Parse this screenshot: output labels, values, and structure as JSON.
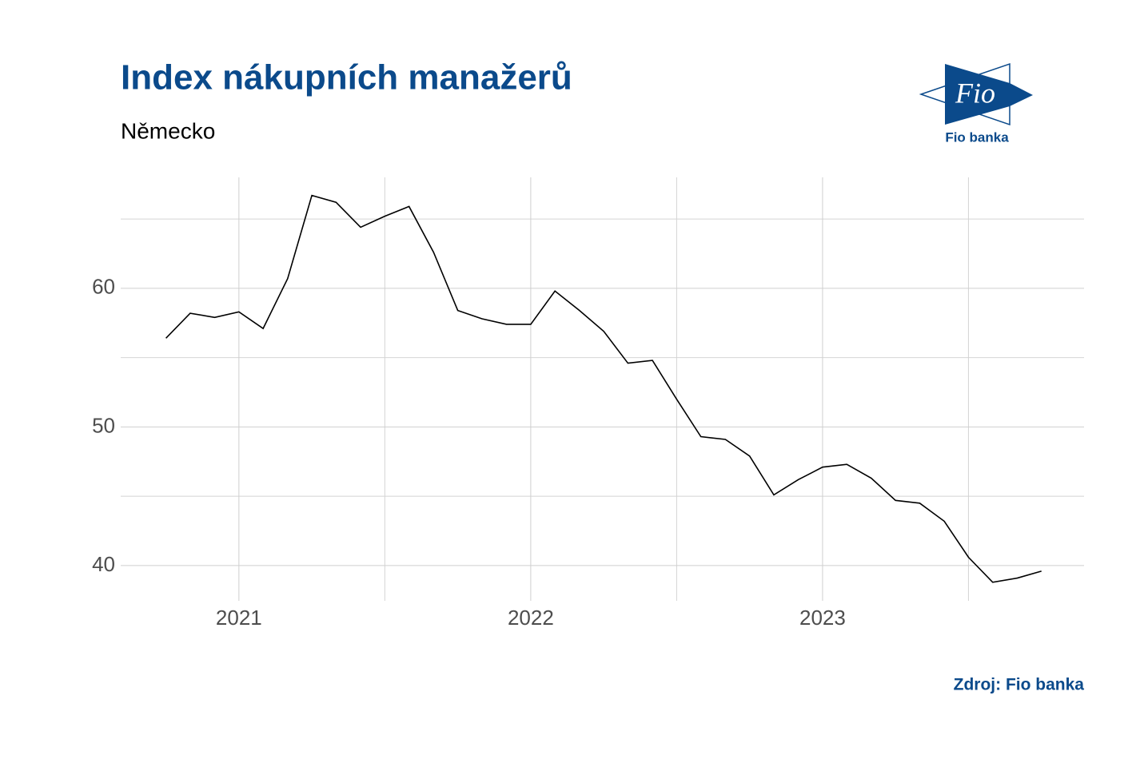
{
  "chart_data": {
    "type": "line",
    "title": "Index nákupních manažerů",
    "subtitle": "Německo",
    "source": "Zdroj: Fio banka",
    "logo": {
      "mark": "Fio",
      "name": "Fio banka"
    },
    "x": [
      2020.75,
      2020.833,
      2020.917,
      2021.0,
      2021.083,
      2021.167,
      2021.25,
      2021.333,
      2021.417,
      2021.5,
      2021.583,
      2021.667,
      2021.75,
      2021.833,
      2021.917,
      2022.0,
      2022.083,
      2022.167,
      2022.25,
      2022.333,
      2022.417,
      2022.5,
      2022.583,
      2022.667,
      2022.75,
      2022.833,
      2022.917,
      2023.0,
      2023.083,
      2023.167,
      2023.25,
      2023.333,
      2023.417,
      2023.5,
      2023.583,
      2023.667,
      2023.75
    ],
    "series": [
      {
        "color": "#000000",
        "values": [
          56.4,
          58.2,
          57.9,
          58.3,
          57.1,
          60.7,
          66.7,
          66.2,
          64.4,
          65.2,
          65.9,
          62.6,
          58.4,
          57.8,
          57.4,
          57.4,
          59.8,
          58.4,
          56.9,
          54.6,
          54.8,
          52.0,
          49.3,
          49.1,
          47.9,
          45.1,
          46.2,
          47.1,
          47.3,
          46.3,
          44.7,
          44.5,
          43.2,
          40.6,
          38.8,
          39.1,
          39.6
        ]
      }
    ],
    "xlim": [
      2020.595,
      2023.896
    ],
    "xticks": [
      2021,
      2022,
      2023
    ],
    "x_minor_ticks": [
      2021.5,
      2022.5,
      2023.5
    ],
    "ylim": [
      37.46,
      68.0
    ],
    "yticks": [
      40,
      50,
      60
    ],
    "y_minor_ticks": [
      45,
      55,
      65
    ],
    "grid": true
  }
}
